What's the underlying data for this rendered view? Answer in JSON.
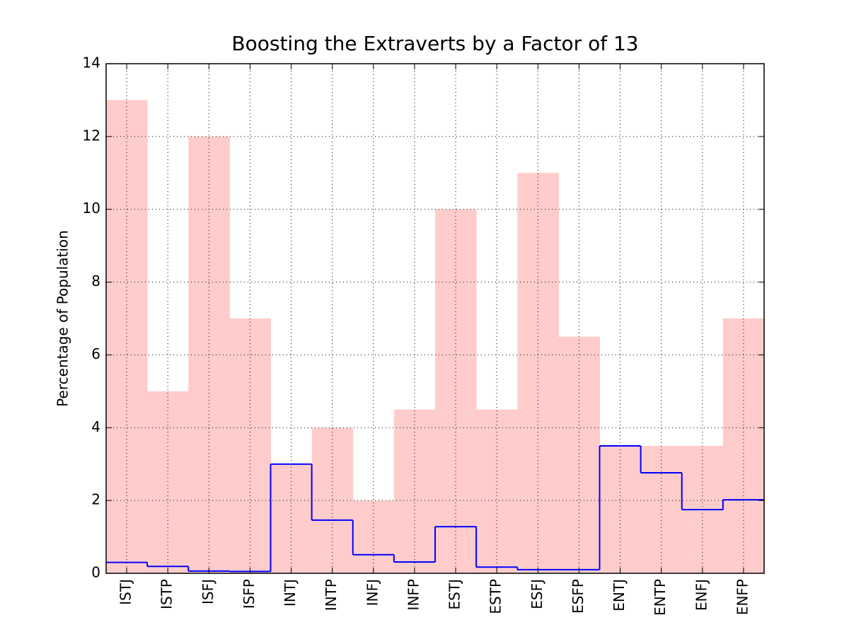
{
  "chart_data": {
    "type": "bar",
    "title": "Boosting the Extraverts by a Factor of 13",
    "y_label": "Percentage of Population",
    "categories": [
      "ISTJ",
      "ISTP",
      "ISFJ",
      "ISFP",
      "INTJ",
      "INTP",
      "INFJ",
      "INFP",
      "ESTJ",
      "ESTP",
      "ESFJ",
      "ESFP",
      "ENTJ",
      "ENTP",
      "ENFJ",
      "ENFP"
    ],
    "series": [
      {
        "color": "#ffcccc",
        "kind": "bar",
        "values": [
          13,
          5,
          12,
          7,
          3,
          4,
          2,
          4.5,
          10,
          4.5,
          11,
          6.5,
          3.5,
          3.5,
          3.5,
          7
        ]
      },
      {
        "color": "#0000ff",
        "kind": "step",
        "values": [
          0.3,
          0.19,
          0.06,
          0.05,
          3,
          1.46,
          0.51,
          0.31,
          1.28,
          0.17,
          0.1,
          0.1,
          3.5,
          2.76,
          1.75,
          2.02
        ]
      }
    ],
    "ylim": [
      0,
      14
    ],
    "yticks": [
      0,
      2,
      4,
      6,
      8,
      10,
      12,
      14
    ],
    "grid": true
  }
}
